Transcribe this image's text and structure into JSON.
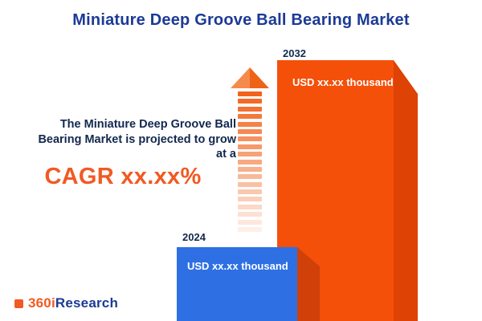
{
  "title": "Miniature Deep Groove Ball Bearing Market",
  "description": {
    "lines": [
      "The Miniature Deep Groove Ball",
      "Bearing Market is projected to grow",
      "at a"
    ],
    "cagr": "CAGR xx.xx%"
  },
  "chart_data": {
    "type": "bar",
    "title": "Miniature Deep Groove Ball Bearing Market",
    "categories": [
      "2024",
      "2032"
    ],
    "series": [
      {
        "name": "Market size (USD thousand)",
        "values": [
          "xx.xx",
          "xx.xx"
        ]
      }
    ],
    "value_labels": [
      "USD xx.xx thousand",
      "USD xx.xx thousand"
    ],
    "xlabel": "",
    "ylabel": "",
    "legend": false,
    "annotation": "The Miniature Deep Groove Ball Bearing Market is projected to grow at a CAGR xx.xx%"
  },
  "colors": {
    "title_blue": "#1c3a96",
    "text_navy": "#12284e",
    "accent_orange": "#f15a22",
    "bar_2024_front": "#2e70e4",
    "bar_2032_front": "#f4500a",
    "bar_2032_side": "#de4204",
    "bar_shadow_dark_orange": "#cf4108",
    "value_text": "#ffffff"
  },
  "logo": {
    "text_orange": "360i",
    "text_blue": "Research"
  }
}
